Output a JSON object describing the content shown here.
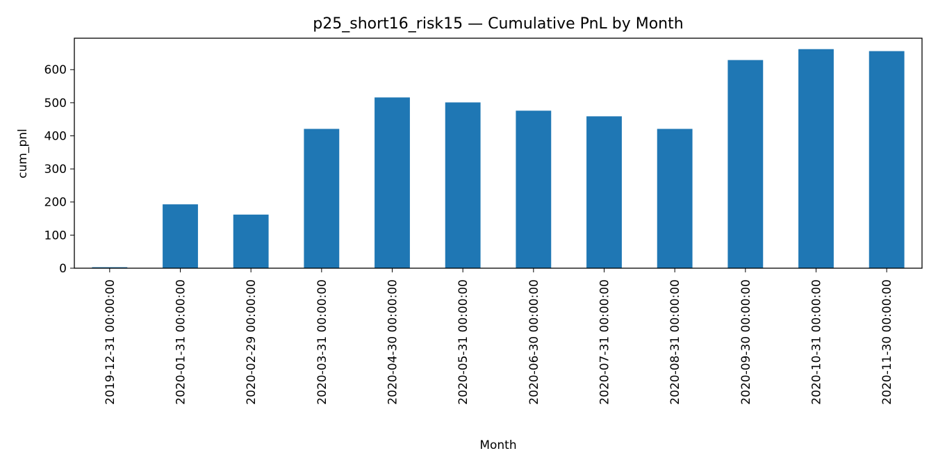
{
  "chart_data": {
    "type": "bar",
    "title": "p25_short16_risk15 — Cumulative PnL by Month",
    "xlabel": "Month",
    "ylabel": "cum_pnl",
    "categories": [
      "2019-12-31 00:00:00",
      "2020-01-31 00:00:00",
      "2020-02-29 00:00:00",
      "2020-03-31 00:00:00",
      "2020-04-30 00:00:00",
      "2020-05-31 00:00:00",
      "2020-06-30 00:00:00",
      "2020-07-31 00:00:00",
      "2020-08-31 00:00:00",
      "2020-09-30 00:00:00",
      "2020-10-31 00:00:00",
      "2020-11-30 00:00:00"
    ],
    "values": [
      3,
      193,
      162,
      421,
      516,
      501,
      476,
      459,
      421,
      629,
      662,
      656
    ],
    "ylim": [
      0,
      695
    ],
    "yticks": [
      0,
      100,
      200,
      300,
      400,
      500,
      600
    ],
    "grid": false,
    "bar_color": "#1f77b4"
  }
}
